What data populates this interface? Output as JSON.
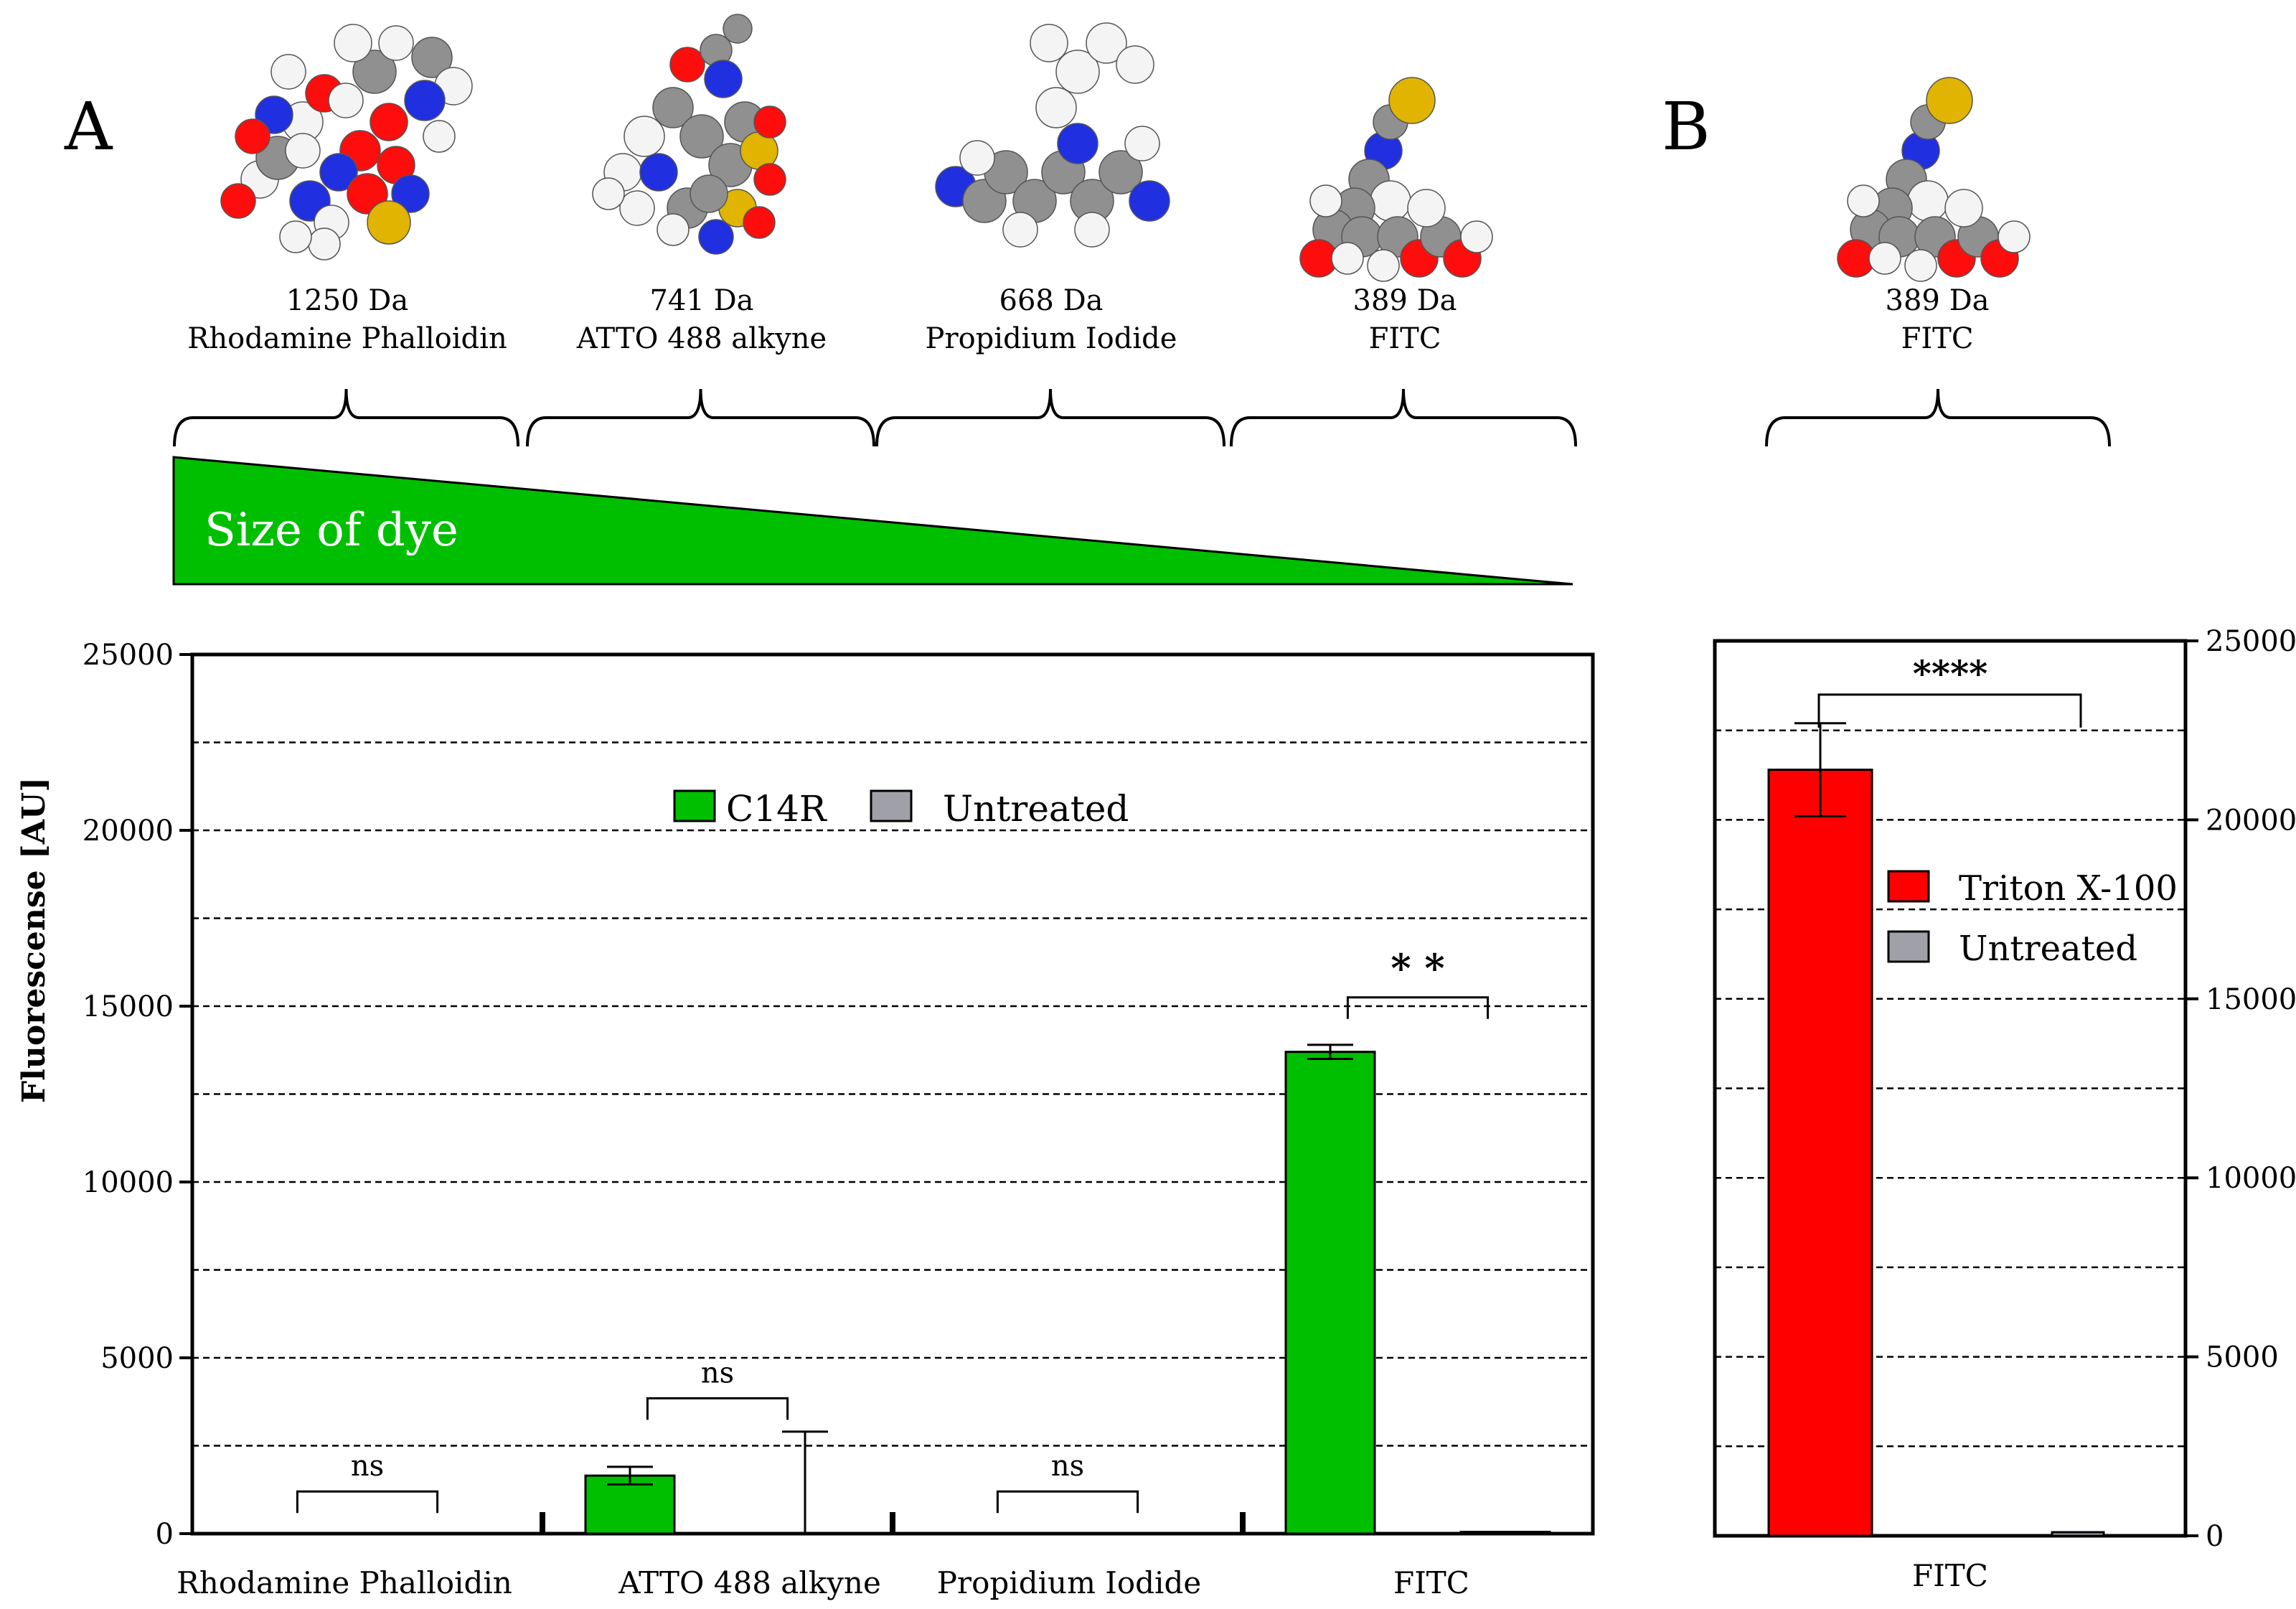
{
  "panel_labels": [
    "A",
    "B"
  ],
  "dyes": [
    {
      "mass": "1250 Da",
      "name": "Rhodamine Phalloidin"
    },
    {
      "mass": "741 Da",
      "name": "ATTO 488 alkyne"
    },
    {
      "mass": "668 Da",
      "name": "Propidium Iodide"
    },
    {
      "mass": "389 Da",
      "name": "FITC"
    }
  ],
  "dye_b": {
    "mass": "389 Da",
    "name": "FITC"
  },
  "size_label": "Size of dye",
  "colors": {
    "c14r": "#00bf00",
    "untreated": "#a0a0a8",
    "triton": "#ff0000",
    "wedge": "#00bf00",
    "atom_o": "#ff0d0d",
    "atom_n": "#2030e0",
    "atom_s": "#e0b400",
    "atom_c": "#909090",
    "atom_h": "#f4f4f4"
  },
  "chart_data": [
    {
      "type": "bar",
      "panel": "A",
      "ylabel": "Fluorescense [AU]",
      "xlabel": "",
      "ylim": [
        0,
        25000
      ],
      "yticks": [
        0,
        5000,
        10000,
        15000,
        20000,
        25000
      ],
      "ytick_labels": [
        "0",
        "5000",
        "10000",
        "15000",
        "20000",
        "25000"
      ],
      "grid": "dashed horizontal every 2500",
      "categories": [
        "Rhodamine Phalloidin",
        "ATTO 488 alkyne",
        "Propidium Iodide",
        "FITC"
      ],
      "series": [
        {
          "name": "C14R",
          "values": [
            0,
            1650,
            0,
            13700
          ],
          "errors": [
            0,
            250,
            0,
            200
          ]
        },
        {
          "name": "Untreated",
          "values": [
            0,
            0,
            0,
            50
          ],
          "errors": [
            0,
            2900,
            0,
            0
          ]
        }
      ],
      "legend": {
        "position": "top-center",
        "entries": [
          "C14R",
          "Untreated"
        ]
      },
      "annotations": [
        "ns",
        "ns",
        "ns",
        "* *"
      ]
    },
    {
      "type": "bar",
      "panel": "B",
      "ylabel": "",
      "xlabel": "",
      "ylim": [
        0,
        25000
      ],
      "yticks": [
        0,
        5000,
        10000,
        15000,
        20000,
        25000
      ],
      "ytick_labels": [
        "0",
        "5000",
        "10000",
        "15000",
        "20000",
        "25000"
      ],
      "y_axis_side": "right",
      "grid": "dashed horizontal every 2500",
      "categories": [
        "FITC"
      ],
      "series": [
        {
          "name": "Triton X-100",
          "values": [
            21400
          ],
          "errors": [
            1300
          ]
        },
        {
          "name": "Untreated",
          "values": [
            100
          ],
          "errors": [
            0
          ]
        }
      ],
      "legend": {
        "position": "center-right",
        "entries": [
          "Triton X-100",
          "Untreated"
        ]
      },
      "annotations": [
        "****"
      ]
    }
  ]
}
